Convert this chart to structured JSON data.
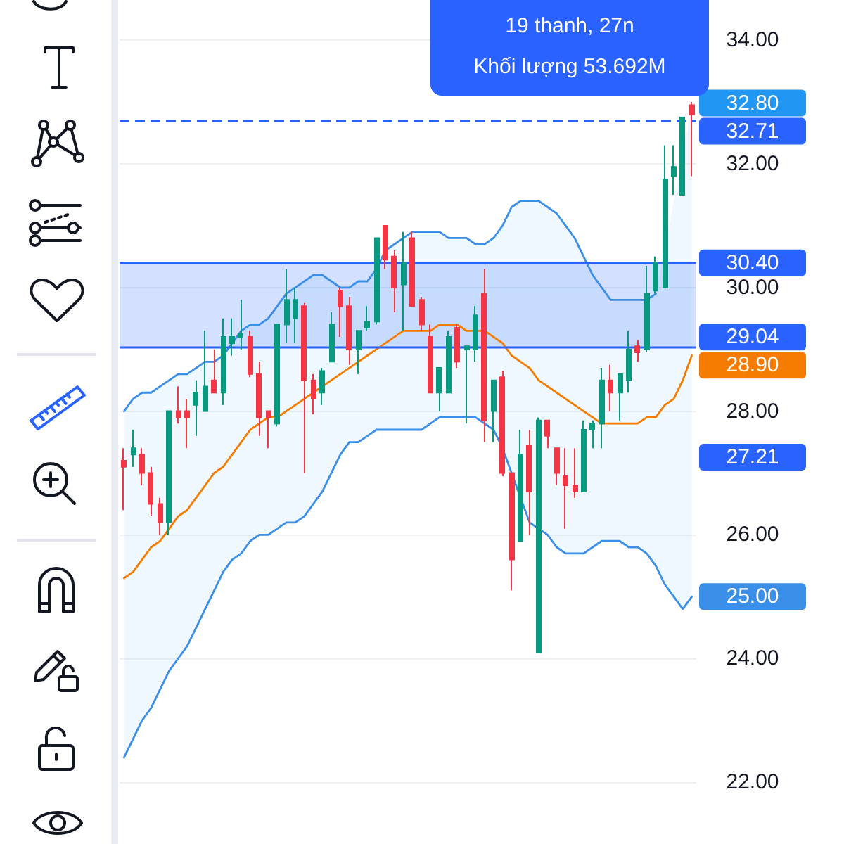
{
  "chart_data": {
    "type": "candlestick",
    "categories": [
      null,
      null,
      null,
      null,
      null,
      null,
      null,
      null,
      null,
      null,
      null,
      null,
      null,
      null,
      null,
      null,
      null,
      null,
      null,
      null,
      null,
      null,
      null,
      null,
      null,
      null,
      null,
      null,
      null,
      null,
      null,
      null,
      null,
      null,
      null,
      null,
      null,
      null,
      null,
      null,
      null,
      null,
      null,
      null,
      null,
      null,
      null,
      null,
      null,
      null,
      null,
      null,
      null,
      null,
      null,
      null,
      null,
      null,
      null,
      null,
      null,
      null,
      null,
      null
    ],
    "ohlc": [
      [
        27.2,
        27.4,
        26.4,
        27.1
      ],
      [
        27.3,
        27.7,
        27.1,
        27.4
      ],
      [
        27.3,
        27.4,
        26.8,
        27.0
      ],
      [
        27.0,
        27.1,
        26.3,
        26.5
      ],
      [
        26.5,
        26.6,
        26.0,
        26.2
      ],
      [
        26.2,
        28.0,
        26.0,
        28.0
      ],
      [
        28.0,
        28.4,
        27.8,
        27.9
      ],
      [
        28.0,
        28.2,
        27.4,
        27.9
      ],
      [
        28.1,
        28.5,
        27.6,
        28.3
      ],
      [
        28.0,
        29.3,
        28.0,
        28.4
      ],
      [
        28.5,
        29.0,
        28.3,
        28.3
      ],
      [
        28.3,
        29.5,
        28.1,
        29.2
      ],
      [
        29.1,
        29.5,
        28.9,
        29.2
      ],
      [
        29.2,
        29.8,
        29.0,
        29.25
      ],
      [
        29.2,
        29.3,
        28.55,
        28.6
      ],
      [
        28.6,
        28.8,
        27.6,
        27.9
      ],
      [
        28.0,
        28.0,
        27.4,
        27.9
      ],
      [
        27.8,
        29.4,
        27.75,
        29.4
      ],
      [
        29.4,
        30.3,
        29.1,
        29.8
      ],
      [
        29.5,
        30.0,
        29.1,
        29.8
      ],
      [
        29.7,
        29.75,
        27.0,
        28.5
      ],
      [
        28.5,
        28.6,
        27.95,
        28.2
      ],
      [
        28.3,
        28.7,
        28.1,
        28.65
      ],
      [
        28.8,
        29.6,
        28.8,
        29.4
      ],
      [
        29.95,
        30.0,
        29.2,
        29.7
      ],
      [
        29.7,
        29.85,
        28.75,
        29.0
      ],
      [
        29.0,
        29.3,
        28.6,
        29.3
      ],
      [
        29.35,
        29.7,
        29.3,
        29.45
      ],
      [
        29.45,
        30.8,
        29.4,
        30.8
      ],
      [
        31.0,
        31.0,
        30.3,
        30.45
      ],
      [
        30.5,
        30.6,
        29.6,
        30.0
      ],
      [
        30.05,
        30.9,
        29.3,
        30.4
      ],
      [
        30.8,
        30.9,
        29.7,
        29.7
      ],
      [
        29.8,
        29.85,
        29.3,
        29.4
      ],
      [
        29.2,
        29.4,
        28.3,
        28.3
      ],
      [
        28.3,
        28.7,
        28.0,
        28.7
      ],
      [
        28.3,
        29.3,
        28.3,
        29.2
      ],
      [
        29.35,
        29.4,
        28.7,
        28.8
      ],
      [
        29.0,
        29.05,
        27.8,
        29.05
      ],
      [
        29.0,
        29.7,
        28.8,
        29.55
      ],
      [
        29.9,
        30.3,
        27.5,
        27.85
      ],
      [
        28.0,
        28.5,
        27.5,
        28.5
      ],
      [
        28.55,
        28.65,
        26.95,
        27.0
      ],
      [
        27.0,
        27.0,
        25.1,
        25.6
      ],
      [
        25.9,
        27.7,
        25.9,
        27.3
      ],
      [
        27.45,
        27.7,
        26.0,
        26.7
      ],
      [
        24.1,
        27.9,
        24.1,
        27.85
      ],
      [
        27.85,
        27.85,
        27.4,
        27.6
      ],
      [
        27.4,
        27.4,
        26.8,
        27.0
      ],
      [
        26.95,
        27.4,
        26.1,
        26.8
      ],
      [
        26.8,
        27.4,
        26.6,
        26.7
      ],
      [
        26.7,
        27.85,
        26.7,
        27.7
      ],
      [
        27.7,
        27.85,
        27.4,
        27.8
      ],
      [
        27.8,
        28.7,
        27.4,
        28.5
      ],
      [
        28.5,
        28.75,
        28.0,
        28.3
      ],
      [
        28.3,
        28.6,
        27.85,
        28.6
      ],
      [
        28.5,
        29.3,
        28.3,
        29.0
      ],
      [
        29.05,
        29.15,
        28.8,
        28.95
      ],
      [
        29.0,
        30.35,
        28.95,
        29.9
      ],
      [
        29.95,
        30.5,
        29.9,
        30.4
      ],
      [
        30.0,
        32.3,
        30.0,
        31.75
      ],
      [
        31.8,
        32.3,
        31.5,
        31.95
      ],
      [
        31.5,
        32.75,
        31.5,
        32.75
      ],
      [
        32.95,
        33.0,
        31.8,
        32.8
      ]
    ],
    "value_labels": [
      null,
      null,
      null,
      null,
      null,
      null,
      null,
      null,
      null,
      null,
      null,
      null,
      null,
      null,
      null,
      null,
      null,
      null,
      null,
      null,
      null,
      null,
      null,
      null,
      null,
      null,
      null,
      null,
      null,
      null,
      null,
      null,
      null,
      null,
      null,
      null,
      null,
      null,
      null,
      null,
      null,
      null,
      null,
      null,
      null,
      null,
      null,
      null,
      null,
      null,
      null,
      null,
      null,
      null,
      null,
      null,
      null,
      null,
      null,
      null,
      null,
      null,
      null,
      "32.80"
    ],
    "series": [
      {
        "type": "line",
        "color": "#3b8fe8",
        "values": [
          28.0,
          28.2,
          28.3,
          28.3,
          28.4,
          28.5,
          28.6,
          28.6,
          28.7,
          28.8,
          28.8,
          28.9,
          29.1,
          29.3,
          29.4,
          29.4,
          29.5,
          29.7,
          29.9,
          30.0,
          30.1,
          30.2,
          30.2,
          30.1,
          30.0,
          30.0,
          30.1,
          30.1,
          30.3,
          30.6,
          30.7,
          30.8,
          30.9,
          30.9,
          30.9,
          30.9,
          30.8,
          30.8,
          30.8,
          30.7,
          30.7,
          30.8,
          31.0,
          31.3,
          31.4,
          31.4,
          31.4,
          31.3,
          31.2,
          31.0,
          30.8,
          30.5,
          30.2,
          30.0,
          29.8,
          29.8,
          29.8,
          29.8,
          29.8,
          29.9,
          null,
          null,
          null,
          null
        ]
      },
      {
        "type": "line",
        "color": "#3b8fe8",
        "values": [
          22.4,
          22.7,
          23.0,
          23.2,
          23.5,
          23.8,
          24.0,
          24.2,
          24.5,
          24.8,
          25.1,
          25.4,
          25.6,
          25.7,
          25.9,
          26.0,
          26.0,
          26.1,
          26.2,
          26.2,
          26.3,
          26.5,
          26.7,
          27.0,
          27.3,
          27.5,
          27.5,
          27.6,
          27.7,
          27.7,
          27.7,
          27.7,
          27.7,
          27.7,
          27.8,
          27.9,
          27.9,
          27.9,
          27.9,
          27.9,
          27.8,
          27.7,
          27.4,
          27.0,
          26.6,
          26.2,
          26.1,
          26.0,
          25.8,
          25.7,
          25.7,
          25.7,
          25.8,
          25.9,
          25.9,
          25.9,
          25.8,
          25.8,
          25.7,
          25.5,
          25.2,
          25.0,
          24.8,
          25.0
        ],
        "value_labels": [
          null,
          null,
          null,
          null,
          null,
          null,
          null,
          null,
          null,
          null,
          null,
          null,
          null,
          null,
          null,
          null,
          null,
          null,
          null,
          null,
          null,
          null,
          null,
          null,
          null,
          null,
          null,
          null,
          null,
          null,
          null,
          null,
          null,
          null,
          null,
          null,
          null,
          null,
          null,
          null,
          null,
          null,
          null,
          null,
          null,
          null,
          null,
          null,
          null,
          null,
          null,
          null,
          null,
          null,
          null,
          null,
          null,
          null,
          null,
          null,
          null,
          null,
          null,
          "25.00"
        ]
      },
      {
        "type": "line",
        "color": "#f57c00",
        "values": [
          25.3,
          25.4,
          25.6,
          25.8,
          25.9,
          26.1,
          26.3,
          26.4,
          26.6,
          26.8,
          27.0,
          27.1,
          27.3,
          27.5,
          27.7,
          27.8,
          27.9,
          27.9,
          28.0,
          28.1,
          28.2,
          28.3,
          28.4,
          28.5,
          28.6,
          28.7,
          28.8,
          28.9,
          29.0,
          29.1,
          29.2,
          29.3,
          29.3,
          29.3,
          29.3,
          29.4,
          29.4,
          29.4,
          29.3,
          29.3,
          29.3,
          29.2,
          29.1,
          28.9,
          28.8,
          28.7,
          28.5,
          28.4,
          28.3,
          28.2,
          28.1,
          28.0,
          27.9,
          27.8,
          27.8,
          27.8,
          27.8,
          27.8,
          27.9,
          27.9,
          28.1,
          28.2,
          28.5,
          28.9
        ],
        "upper": [
          28.0,
          28.2,
          28.3,
          28.3,
          28.4,
          28.5,
          28.6,
          28.6,
          28.7,
          28.8,
          28.8,
          28.9,
          29.1,
          29.3,
          29.4,
          29.4,
          29.5,
          29.7,
          29.9,
          30.0,
          30.1,
          30.2,
          30.2,
          30.1,
          30.0,
          30.0,
          30.1,
          30.1,
          30.3,
          30.6,
          30.7,
          30.8,
          30.9,
          30.9,
          30.9,
          30.9,
          30.8,
          30.8,
          30.8,
          30.7,
          30.7,
          30.8,
          31.0,
          31.3,
          31.4,
          31.4,
          31.4,
          31.3,
          31.2,
          31.0,
          30.8,
          30.5,
          30.2,
          30.0,
          29.8,
          29.8,
          29.8,
          29.8,
          29.8,
          29.9,
          30.6,
          31.4,
          32.2,
          32.9
        ],
        "lower": [
          22.4,
          22.7,
          23.0,
          23.2,
          23.5,
          23.8,
          24.0,
          24.2,
          24.5,
          24.8,
          25.1,
          25.4,
          25.6,
          25.7,
          25.9,
          26.0,
          26.0,
          26.1,
          26.2,
          26.2,
          26.3,
          26.5,
          26.7,
          27.0,
          27.3,
          27.5,
          27.5,
          27.6,
          27.7,
          27.7,
          27.7,
          27.7,
          27.7,
          27.7,
          27.8,
          27.9,
          27.9,
          27.9,
          27.9,
          27.9,
          27.8,
          27.7,
          27.4,
          27.0,
          26.6,
          26.2,
          26.1,
          26.0,
          25.8,
          25.7,
          25.7,
          25.7,
          25.8,
          25.9,
          25.9,
          25.9,
          25.8,
          25.8,
          25.7,
          25.5,
          25.2,
          25.0,
          24.8,
          25.0
        ],
        "value_labels": [
          null,
          null,
          null,
          null,
          null,
          null,
          null,
          null,
          null,
          null,
          null,
          null,
          null,
          null,
          null,
          null,
          null,
          null,
          null,
          null,
          null,
          null,
          null,
          null,
          null,
          null,
          null,
          null,
          null,
          null,
          null,
          null,
          null,
          null,
          null,
          null,
          null,
          null,
          null,
          null,
          null,
          null,
          null,
          null,
          null,
          null,
          null,
          null,
          null,
          null,
          null,
          null,
          null,
          null,
          null,
          null,
          null,
          null,
          null,
          null,
          null,
          null,
          null,
          "28.90"
        ]
      }
    ],
    "ylim": [
      21.0,
      34.65
    ],
    "yticks": [
      {
        "value": 22,
        "label": "22.00"
      },
      {
        "value": 24,
        "label": "24.00"
      },
      {
        "value": 26,
        "label": "26.00"
      },
      {
        "value": 28,
        "label": "28.00"
      },
      {
        "value": 30,
        "label": "30.00"
      },
      {
        "value": 32,
        "label": "32.00"
      },
      {
        "value": 34,
        "label": "34.00"
      }
    ],
    "grid": "y",
    "tick_labels": "y",
    "ref_lines": [
      {
        "axis": "y",
        "value": 32.71,
        "label": "32.71",
        "color": "#2962ff",
        "line_style": "dashed"
      },
      {
        "axis": "y",
        "value": 30.4,
        "label": "30.40",
        "color": "#2962ff"
      },
      {
        "axis": "y",
        "value": 29.04,
        "label": "29.04",
        "color": "#2962ff"
      }
    ],
    "bands": [
      {
        "axis": "y",
        "from": 29.04,
        "to": 30.4,
        "color": "#2962ff"
      }
    ],
    "annotations": [
      "19 thanh, 27n",
      "Khối lượng 53.692M",
      "27.21"
    ]
  }
}
